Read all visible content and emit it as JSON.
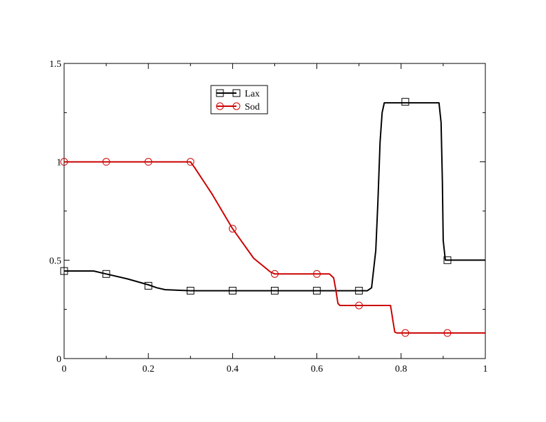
{
  "chart_data": {
    "type": "line",
    "title": "",
    "xlabel": "",
    "ylabel": "",
    "xlim": [
      0,
      1
    ],
    "ylim": [
      0,
      1.5
    ],
    "x_ticks": [
      0,
      0.2,
      0.4,
      0.6,
      0.8,
      1
    ],
    "x_tick_labels": [
      "0",
      "0.2",
      "0.4",
      "0.6",
      "0.8",
      "1"
    ],
    "y_ticks": [
      0,
      0.5,
      1,
      1.5
    ],
    "y_tick_labels": [
      "0",
      "0.5",
      "1",
      "1.5"
    ],
    "grid": false,
    "legend_position": "top-center",
    "series": [
      {
        "name": "Lax",
        "color": "#000000",
        "marker": "square",
        "line": [
          [
            0,
            0.445
          ],
          [
            0.07,
            0.445
          ],
          [
            0.1,
            0.43
          ],
          [
            0.15,
            0.405
          ],
          [
            0.2,
            0.375
          ],
          [
            0.22,
            0.36
          ],
          [
            0.24,
            0.35
          ],
          [
            0.3,
            0.345
          ],
          [
            0.5,
            0.345
          ],
          [
            0.72,
            0.345
          ],
          [
            0.73,
            0.36
          ],
          [
            0.74,
            0.55
          ],
          [
            0.745,
            0.8
          ],
          [
            0.75,
            1.1
          ],
          [
            0.755,
            1.25
          ],
          [
            0.76,
            1.3
          ],
          [
            0.89,
            1.3
          ],
          [
            0.895,
            1.2
          ],
          [
            0.898,
            0.9
          ],
          [
            0.9,
            0.6
          ],
          [
            0.905,
            0.5
          ],
          [
            1,
            0.5
          ]
        ],
        "markers": [
          [
            0,
            0.445
          ],
          [
            0.1,
            0.43
          ],
          [
            0.2,
            0.37
          ],
          [
            0.3,
            0.345
          ],
          [
            0.4,
            0.345
          ],
          [
            0.5,
            0.345
          ],
          [
            0.6,
            0.345
          ],
          [
            0.7,
            0.345
          ],
          [
            0.81,
            1.305
          ],
          [
            0.91,
            0.5
          ]
        ]
      },
      {
        "name": "Sod",
        "color": "#cc0000",
        "marker": "circle",
        "line": [
          [
            0,
            1
          ],
          [
            0.3,
            1
          ],
          [
            0.31,
            0.97
          ],
          [
            0.35,
            0.84
          ],
          [
            0.4,
            0.66
          ],
          [
            0.45,
            0.51
          ],
          [
            0.49,
            0.44
          ],
          [
            0.5,
            0.43
          ],
          [
            0.63,
            0.43
          ],
          [
            0.64,
            0.41
          ],
          [
            0.645,
            0.35
          ],
          [
            0.65,
            0.28
          ],
          [
            0.655,
            0.27
          ],
          [
            0.775,
            0.27
          ],
          [
            0.78,
            0.2
          ],
          [
            0.785,
            0.135
          ],
          [
            0.79,
            0.13
          ],
          [
            1,
            0.13
          ]
        ],
        "markers": [
          [
            0,
            1
          ],
          [
            0.1,
            1
          ],
          [
            0.2,
            1
          ],
          [
            0.3,
            1
          ],
          [
            0.4,
            0.66
          ],
          [
            0.5,
            0.43
          ],
          [
            0.6,
            0.43
          ],
          [
            0.7,
            0.27
          ],
          [
            0.81,
            0.13
          ],
          [
            0.91,
            0.13
          ]
        ]
      }
    ]
  }
}
